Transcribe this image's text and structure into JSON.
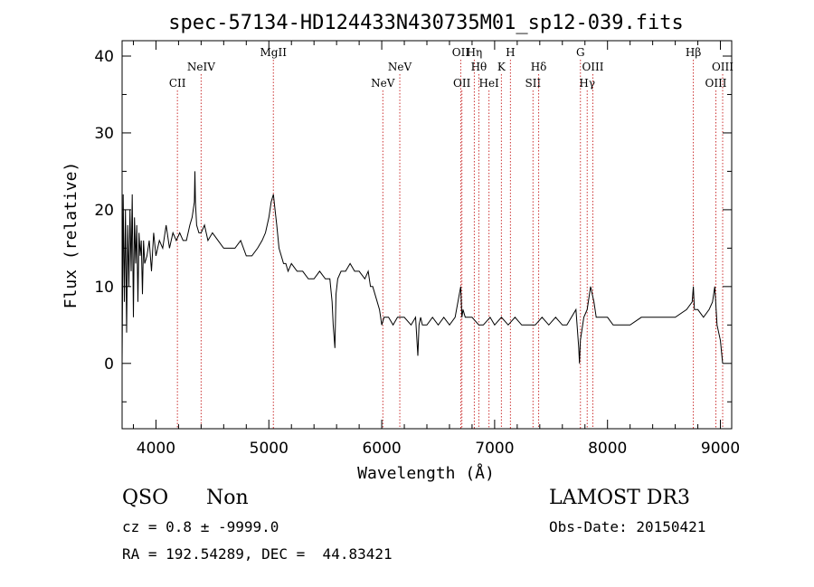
{
  "chart_data": {
    "type": "line",
    "title": "spec-57134-HD124433N430735M01_sp12-039.fits",
    "xlabel": "Wavelength (Å)",
    "ylabel": "Flux (relative)",
    "xlim": [
      3700,
      9100
    ],
    "ylim": [
      -8.5,
      42
    ],
    "xticks": [
      4000,
      5000,
      6000,
      7000,
      8000,
      9000
    ],
    "xtick_labels": [
      "4000",
      "5000",
      "6000",
      "7000",
      "8000",
      "9000"
    ],
    "yticks": [
      0,
      10,
      20,
      30,
      40
    ],
    "ytick_labels": [
      "0",
      "10",
      "20",
      "30",
      "40"
    ],
    "grid": false,
    "line_color": "#000000",
    "marker_color": "#cc3333",
    "lines": [
      {
        "label": "CII",
        "x": 4190,
        "row": 3
      },
      {
        "label": "NeIV",
        "x": 4400,
        "row": 2
      },
      {
        "label": "MgII",
        "x": 5040,
        "row": 0
      },
      {
        "label": "NeV",
        "x": 6010,
        "row": 3
      },
      {
        "label": "NeV",
        "x": 6160,
        "row": 2
      },
      {
        "label": "OII",
        "x": 6700,
        "row": 0
      },
      {
        "label": "OII",
        "x": 6710,
        "row": 3
      },
      {
        "label": "Hη",
        "x": 6820,
        "row": 0
      },
      {
        "label": "Hθ",
        "x": 6860,
        "row": 2
      },
      {
        "label": "HeI",
        "x": 6950,
        "row": 3
      },
      {
        "label": "K",
        "x": 7060,
        "row": 2
      },
      {
        "label": "H",
        "x": 7140,
        "row": 0
      },
      {
        "label": "SII",
        "x": 7340,
        "row": 3
      },
      {
        "label": "Hδ",
        "x": 7390,
        "row": 2
      },
      {
        "label": "G",
        "x": 7760,
        "row": 0
      },
      {
        "label": "Hγ",
        "x": 7820,
        "row": 3
      },
      {
        "label": "OIII",
        "x": 7870,
        "row": 2
      },
      {
        "label": "Hβ",
        "x": 8760,
        "row": 0
      },
      {
        "label": "OIII",
        "x": 8960,
        "row": 3
      },
      {
        "label": "OIII",
        "x": 9020,
        "row": 2
      }
    ],
    "spectrum": {
      "x": [
        3700,
        3710,
        3720,
        3730,
        3740,
        3750,
        3760,
        3770,
        3780,
        3790,
        3800,
        3810,
        3820,
        3830,
        3840,
        3850,
        3860,
        3870,
        3880,
        3890,
        3900,
        3920,
        3940,
        3960,
        3980,
        4000,
        4030,
        4060,
        4090,
        4120,
        4150,
        4180,
        4210,
        4240,
        4270,
        4300,
        4320,
        4340,
        4345,
        4350,
        4360,
        4380,
        4400,
        4430,
        4460,
        4500,
        4550,
        4600,
        4650,
        4700,
        4750,
        4800,
        4850,
        4900,
        4940,
        4970,
        5000,
        5020,
        5040,
        5055,
        5070,
        5090,
        5110,
        5130,
        5150,
        5170,
        5200,
        5250,
        5300,
        5350,
        5400,
        5450,
        5500,
        5540,
        5560,
        5570,
        5585,
        5595,
        5610,
        5640,
        5680,
        5720,
        5760,
        5800,
        5850,
        5880,
        5900,
        5920,
        5940,
        5960,
        5980,
        6000,
        6020,
        6060,
        6100,
        6140,
        6200,
        6260,
        6300,
        6320,
        6330,
        6345,
        6360,
        6400,
        6450,
        6500,
        6550,
        6600,
        6650,
        6700,
        6710,
        6720,
        6740,
        6800,
        6860,
        6900,
        6960,
        7000,
        7060,
        7120,
        7180,
        7240,
        7300,
        7360,
        7420,
        7480,
        7540,
        7600,
        7640,
        7680,
        7720,
        7745,
        7752,
        7760,
        7790,
        7820,
        7850,
        7880,
        7900,
        7950,
        8000,
        8050,
        8100,
        8200,
        8300,
        8400,
        8500,
        8600,
        8700,
        8750,
        8760,
        8770,
        8800,
        8850,
        8900,
        8930,
        8950,
        8970,
        9000,
        9020
      ],
      "y": [
        0,
        22,
        8,
        20,
        4,
        18,
        10,
        20,
        12,
        22,
        6,
        19,
        13,
        18,
        8,
        17,
        14,
        16,
        9,
        16,
        13,
        14,
        16,
        12,
        17,
        14,
        16,
        15,
        18,
        15,
        17,
        16,
        17,
        16,
        16,
        18,
        19,
        21,
        25,
        21,
        18,
        17,
        17,
        18,
        16,
        17,
        16,
        15,
        15,
        15,
        16,
        14,
        14,
        15,
        16,
        17,
        19,
        21,
        22,
        20,
        18,
        15,
        14,
        13,
        13,
        12,
        13,
        12,
        12,
        11,
        11,
        12,
        11,
        11,
        8,
        5,
        2,
        9,
        11,
        12,
        12,
        13,
        12,
        12,
        11,
        12,
        10,
        10,
        9,
        8,
        7,
        5,
        6,
        6,
        5,
        6,
        6,
        5,
        6,
        1,
        5,
        6,
        5,
        5,
        6,
        5,
        6,
        5,
        6,
        10,
        6,
        7,
        6,
        6,
        5,
        5,
        6,
        5,
        6,
        5,
        6,
        5,
        5,
        5,
        6,
        5,
        6,
        5,
        5,
        6,
        7,
        2,
        0,
        3,
        6,
        7,
        10,
        8,
        6,
        6,
        6,
        5,
        5,
        5,
        6,
        6,
        6,
        6,
        7,
        8,
        10,
        7,
        7,
        6,
        7,
        8,
        10,
        5,
        3,
        0
      ]
    }
  },
  "info": {
    "class": "QSO",
    "subclass": "Non",
    "cz": "cz = 0.8 ± -9999.0",
    "coords": "RA = 192.54289, DEC =  44.83421",
    "survey": "LAMOST DR3",
    "obs_date": "Obs-Date: 20150421"
  }
}
